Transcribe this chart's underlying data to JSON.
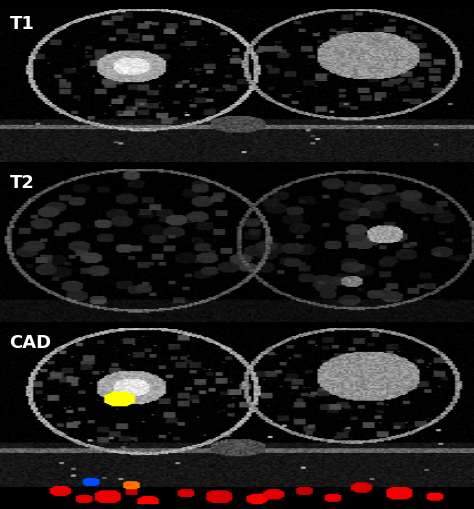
{
  "background_color": "#000000",
  "labels": [
    "T1",
    "T2",
    "CAD"
  ],
  "label_color": "#ffffff",
  "label_fontsize": 13,
  "fig_width": 4.74,
  "fig_height": 5.1
}
